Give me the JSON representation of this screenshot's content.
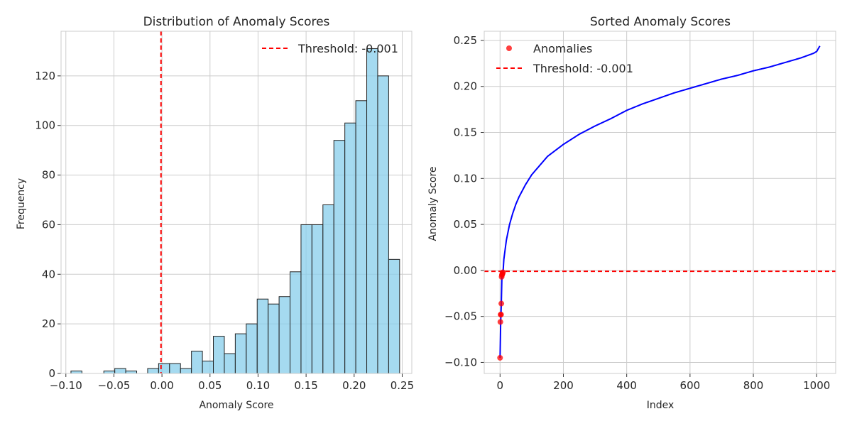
{
  "chart_data": [
    {
      "type": "bar",
      "title": "Distribution of Anomaly Scores",
      "xlabel": "Anomaly Score",
      "ylabel": "Frequency",
      "xlim": [
        -0.1,
        0.25
      ],
      "ylim": [
        0,
        130
      ],
      "grid": true,
      "legend_position": "top-right",
      "bin_width": 0.0114,
      "bin_starts": [
        -0.0947,
        -0.0833,
        -0.0719,
        -0.0605,
        -0.0491,
        -0.0377,
        -0.0263,
        -0.0149,
        -0.0035,
        0.0079,
        0.0193,
        0.0307,
        0.0421,
        0.0535,
        0.0649,
        0.0763,
        0.0877,
        0.0991,
        0.1105,
        0.1219,
        0.1333,
        0.1447,
        0.1561,
        0.1675,
        0.1789,
        0.1903,
        0.2017,
        0.2131,
        0.2245,
        0.2359
      ],
      "values": [
        1,
        0,
        0,
        1,
        2,
        1,
        0,
        2,
        4,
        4,
        2,
        9,
        5,
        15,
        8,
        16,
        20,
        30,
        28,
        31,
        41,
        60,
        60,
        68,
        94,
        101,
        110,
        131,
        120,
        46
      ],
      "bar_color": "#87CEEB",
      "threshold": {
        "value": -0.001,
        "label": "Threshold: -0.001",
        "color": "#FF0000"
      },
      "x_ticks": [
        {
          "v": -0.1,
          "label": "−0.10"
        },
        {
          "v": -0.05,
          "label": "−0.05"
        },
        {
          "v": 0.0,
          "label": "0.00"
        },
        {
          "v": 0.05,
          "label": "0.05"
        },
        {
          "v": 0.1,
          "label": "0.10"
        },
        {
          "v": 0.15,
          "label": "0.15"
        },
        {
          "v": 0.2,
          "label": "0.20"
        },
        {
          "v": 0.25,
          "label": "0.25"
        }
      ],
      "y_ticks": [
        {
          "v": 0,
          "label": "0"
        },
        {
          "v": 20,
          "label": "20"
        },
        {
          "v": 40,
          "label": "40"
        },
        {
          "v": 60,
          "label": "60"
        },
        {
          "v": 80,
          "label": "80"
        },
        {
          "v": 100,
          "label": "100"
        },
        {
          "v": 120,
          "label": "120"
        }
      ]
    },
    {
      "type": "line",
      "title": "Sorted Anomaly Scores",
      "xlabel": "Index",
      "ylabel": "Anomaly Score",
      "xlim": [
        0,
        1010
      ],
      "ylim": [
        -0.1,
        0.25
      ],
      "grid": true,
      "legend_position": "top-left",
      "n_points": 1010,
      "line_color": "#0000FF",
      "curve_knots": [
        [
          0,
          -0.095
        ],
        [
          2,
          -0.056
        ],
        [
          3,
          -0.048
        ],
        [
          4,
          -0.036
        ],
        [
          5,
          -0.007
        ],
        [
          7,
          -0.004
        ],
        [
          9,
          -0.002
        ],
        [
          10,
          0.001
        ],
        [
          12,
          0.012
        ],
        [
          15,
          0.02
        ],
        [
          20,
          0.033
        ],
        [
          30,
          0.05
        ],
        [
          40,
          0.062
        ],
        [
          50,
          0.072
        ],
        [
          60,
          0.08
        ],
        [
          80,
          0.093
        ],
        [
          100,
          0.104
        ],
        [
          120,
          0.112
        ],
        [
          150,
          0.124
        ],
        [
          200,
          0.137
        ],
        [
          250,
          0.148
        ],
        [
          300,
          0.157
        ],
        [
          350,
          0.165
        ],
        [
          400,
          0.174
        ],
        [
          450,
          0.181
        ],
        [
          500,
          0.187
        ],
        [
          550,
          0.193
        ],
        [
          600,
          0.198
        ],
        [
          650,
          0.203
        ],
        [
          700,
          0.208
        ],
        [
          750,
          0.212
        ],
        [
          800,
          0.217
        ],
        [
          850,
          0.221
        ],
        [
          900,
          0.226
        ],
        [
          950,
          0.231
        ],
        [
          990,
          0.236
        ],
        [
          1000,
          0.238
        ],
        [
          1010,
          0.244
        ]
      ],
      "anomalies": {
        "label": "Anomalies",
        "color": "#FF0000",
        "points": [
          [
            0,
            -0.095
          ],
          [
            1,
            -0.056
          ],
          [
            2,
            -0.048
          ],
          [
            3,
            -0.048
          ],
          [
            4,
            -0.036
          ],
          [
            5,
            -0.007
          ],
          [
            6,
            -0.005
          ],
          [
            7,
            -0.004
          ],
          [
            8,
            -0.003
          ],
          [
            9,
            -0.002
          ]
        ]
      },
      "threshold": {
        "value": -0.001,
        "label": "Threshold: -0.001",
        "color": "#FF0000"
      },
      "x_ticks": [
        {
          "v": 0,
          "label": "0"
        },
        {
          "v": 200,
          "label": "200"
        },
        {
          "v": 400,
          "label": "400"
        },
        {
          "v": 600,
          "label": "600"
        },
        {
          "v": 800,
          "label": "800"
        },
        {
          "v": 1000,
          "label": "1000"
        }
      ],
      "y_ticks": [
        {
          "v": -0.1,
          "label": "−0.10"
        },
        {
          "v": -0.05,
          "label": "−0.05"
        },
        {
          "v": 0.0,
          "label": "0.00"
        },
        {
          "v": 0.05,
          "label": "0.05"
        },
        {
          "v": 0.1,
          "label": "0.10"
        },
        {
          "v": 0.15,
          "label": "0.15"
        },
        {
          "v": 0.2,
          "label": "0.20"
        },
        {
          "v": 0.25,
          "label": "0.25"
        }
      ]
    }
  ]
}
